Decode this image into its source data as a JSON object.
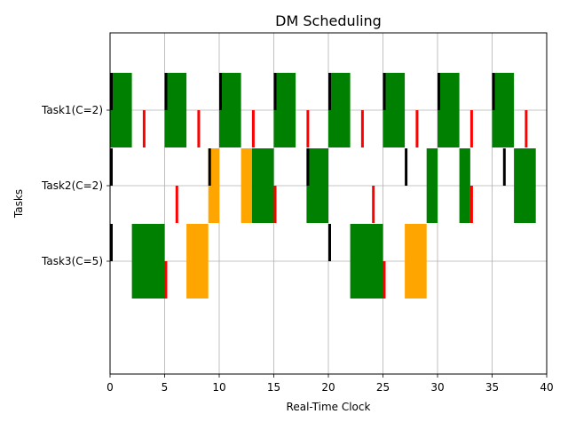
{
  "chart_data": {
    "type": "gantt",
    "title": "DM Scheduling",
    "xlabel": "Real-Time Clock",
    "ylabel": "Tasks",
    "xlim": [
      0,
      40
    ],
    "xticks": [
      "0",
      "5",
      "10",
      "15",
      "20",
      "25",
      "30",
      "35",
      "40"
    ],
    "grid": true,
    "colors": {
      "executing": "#008000",
      "preempted": "#ffa500",
      "release": "#000000",
      "deadline": "#ff0000",
      "grid": "#b0b0b0"
    },
    "tasks": [
      {
        "label": "Task1(C=2)",
        "executing": [
          [
            0,
            2
          ],
          [
            5,
            7
          ],
          [
            10,
            12
          ],
          [
            15,
            17
          ],
          [
            20,
            22
          ],
          [
            25,
            27
          ],
          [
            30,
            32
          ],
          [
            35,
            37
          ]
        ],
        "preempted": [],
        "releases": [
          0,
          5,
          10,
          15,
          20,
          25,
          30,
          35
        ],
        "deadlines": [
          3,
          8,
          13,
          18,
          23,
          28,
          33,
          38
        ]
      },
      {
        "label": "Task2(C=2)",
        "executing": [
          [
            13,
            15
          ],
          [
            18,
            20
          ],
          [
            29,
            30
          ],
          [
            32,
            33
          ],
          [
            37,
            39
          ]
        ],
        "preempted": [
          [
            9,
            10
          ],
          [
            12,
            13
          ]
        ],
        "releases": [
          0,
          9,
          18,
          27,
          36
        ],
        "deadlines": [
          6,
          15,
          24,
          33
        ]
      },
      {
        "label": "Task3(C=5)",
        "executing": [
          [
            2,
            5
          ],
          [
            22,
            25
          ]
        ],
        "preempted": [
          [
            7,
            9
          ],
          [
            27,
            29
          ]
        ],
        "releases": [
          0,
          20
        ],
        "deadlines": [
          5,
          25
        ]
      }
    ]
  }
}
